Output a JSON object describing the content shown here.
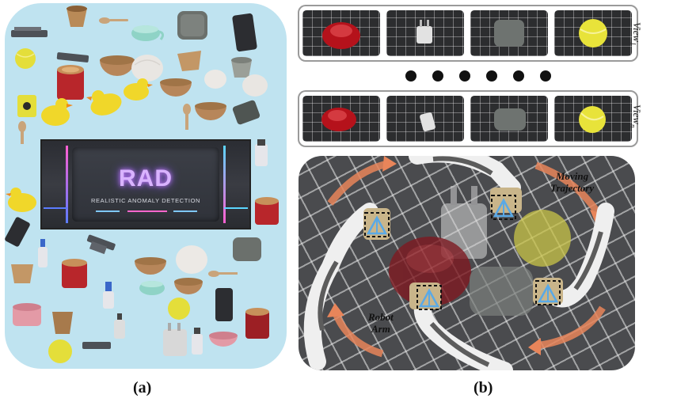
{
  "panel_a": {
    "banner": {
      "title": "RAD",
      "subtitle": "REALISTIC ANOMALY DETECTION"
    },
    "object_icons": [
      "clip-icon",
      "cup-icon",
      "spoon-icon",
      "teacup-icon",
      "box-icon",
      "phone-icon",
      "ball-icon",
      "clip-icon",
      "can-icon",
      "bowl-icon",
      "dome-icon",
      "cup-icon",
      "cup-icon",
      "can-icon",
      "duck-icon",
      "duck-icon",
      "duck-icon",
      "bowl-icon",
      "dome-icon",
      "dome-icon",
      "box-icon",
      "spoon-icon",
      "bowl-icon",
      "bottle-icon",
      "duck-icon",
      "can-icon",
      "phone-icon",
      "bottle-icon",
      "clip-icon",
      "box-icon",
      "cup-icon",
      "can-icon",
      "bowl-icon",
      "dome-icon",
      "teacup-icon",
      "bowl-icon",
      "spoon-icon",
      "bottle-icon",
      "ball-icon",
      "phone-icon",
      "can-icon",
      "bowl-icon",
      "cup-icon",
      "bottle-icon",
      "clip-icon",
      "ball-icon",
      "plug-icon",
      "bottle-icon",
      "bowl-icon"
    ]
  },
  "panel_b": {
    "view_first": {
      "label_base": "View",
      "label_sub": "1",
      "thumb_icons": [
        "red-dome-icon",
        "plug-icon",
        "gray-box-icon",
        "yellow-ball-icon"
      ]
    },
    "view_last": {
      "label_base": "View",
      "label_sub": "n",
      "thumb_icons": [
        "red-dome-icon",
        "plug-icon",
        "gray-box-icon",
        "yellow-ball-icon"
      ]
    },
    "dots_count": 6,
    "scene": {
      "moving_trajectory_line1": "Moving",
      "moving_trajectory_line2": "Trajectory",
      "robot_arm_line1": "Robot",
      "robot_arm_line2": "Arm"
    }
  },
  "captions": {
    "a": "(a)",
    "b": "(b)"
  },
  "colors": {
    "panel_a_bg": "#bfe3f0",
    "frame_gray": "#9a9a9a",
    "trajectory_arrow": "#e8855a",
    "camera_blue": "#5aa9e6",
    "neon_purple": "#c77dff"
  }
}
